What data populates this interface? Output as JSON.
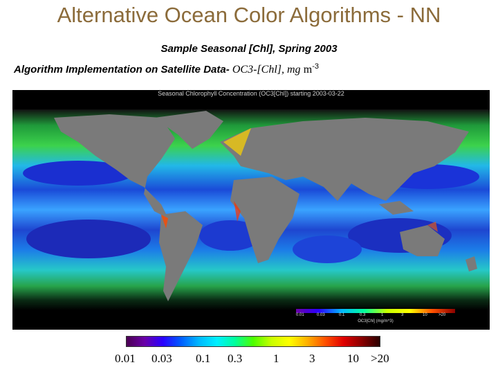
{
  "title": "Alternative Ocean Color Algorithms - NN",
  "subtitle": "Sample Seasonal [Chl], Spring 2003",
  "implementation": {
    "prefix": "Algorithm Implementation on Satellite Data-",
    "algo": "OC3-[Chl], mg",
    "unit": "m",
    "exponent": "-3"
  },
  "map": {
    "caption": "Seasonal Chlorophyll Concentration (OC3[Chl]) starting 2003-03-22",
    "inset_ticks": [
      "0.01",
      "0.03",
      "0.1",
      "0.3",
      "1",
      "3",
      "10",
      ">20"
    ],
    "inset_label": "OC3[Chl] (mg/m^3)"
  },
  "colorbar": {
    "ticks": [
      "0.01",
      "0.03",
      "0.1",
      "0.3",
      "1",
      "3",
      "10",
      ">20"
    ]
  }
}
